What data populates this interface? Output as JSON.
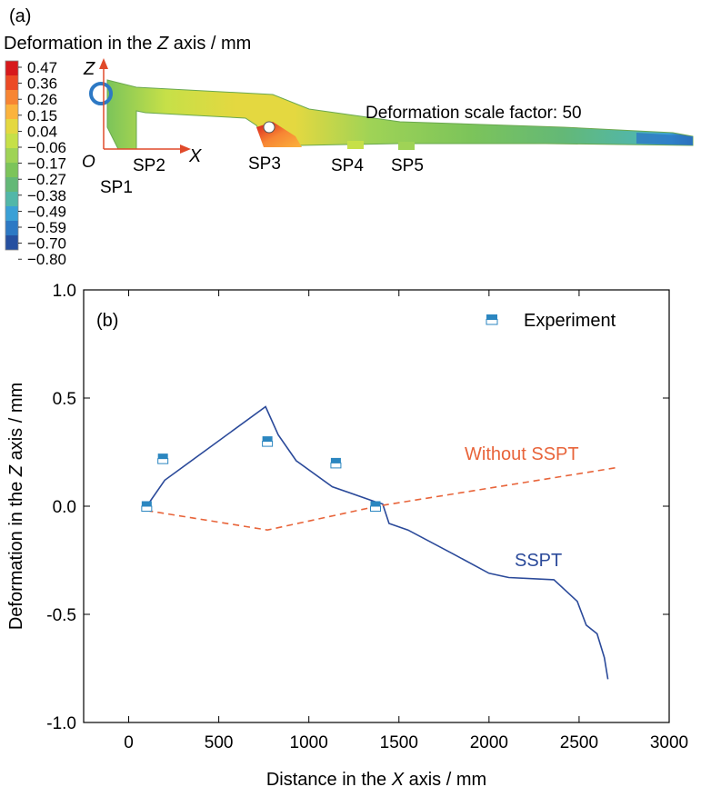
{
  "panel_a": {
    "label": "(a)",
    "colorbar_title_pre": "Deformation in the ",
    "colorbar_title_italic": "Z",
    "colorbar_title_post": " axis / mm",
    "colorbar_ticks": [
      "0.47",
      "0.36",
      "0.26",
      "0.15",
      "0.04",
      "−0.06",
      "−0.17",
      "−0.27",
      "−0.38",
      "−0.49",
      "−0.59",
      "−0.70",
      "−0.80"
    ],
    "colorbar_colors": [
      "#d7191c",
      "#ec4a25",
      "#f78533",
      "#fbb33d",
      "#e4d840",
      "#c6e048",
      "#9fd356",
      "#7cc45a",
      "#63b877",
      "#52b7a8",
      "#3aa0d6",
      "#2d79c4",
      "#2650a0"
    ],
    "axis_z": "Z",
    "axis_x": "X",
    "origin": "O",
    "scale_text": "Deformation scale factor: 50",
    "support_labels": [
      "SP1",
      "SP2",
      "SP3",
      "SP4",
      "SP5"
    ]
  },
  "chart_data": {
    "type": "line",
    "panel_label": "(b)",
    "xlabel_pre": "Distance in the ",
    "xlabel_italic": "X",
    "xlabel_post": " axis / mm",
    "ylabel_pre": "Deformation in the ",
    "ylabel_italic": "Z",
    "ylabel_post": " axis / mm",
    "xlim": [
      -250,
      3000
    ],
    "ylim": [
      -1.0,
      1.0
    ],
    "xticks": [
      0,
      500,
      1000,
      1500,
      2000,
      2500,
      3000
    ],
    "yticks": [
      1.0,
      0.5,
      0.0,
      -0.5,
      -1.0
    ],
    "xtick_labels": [
      "0",
      "500",
      "1000",
      "1500",
      "2000",
      "2500",
      "3000"
    ],
    "ytick_labels": [
      "1.0",
      "0.5",
      "0.0",
      "-0.5",
      "-1.0"
    ],
    "legend_label": "Experiment",
    "series": [
      {
        "name": "SSPT",
        "color": "#2b4a9a",
        "style": "solid",
        "x": [
          100,
          200,
          760,
          830,
          930,
          1130,
          1370,
          1410,
          1445,
          1550,
          1800,
          2000,
          2110,
          2360,
          2490,
          2540,
          2600,
          2640,
          2660
        ],
        "y": [
          0.0,
          0.12,
          0.46,
          0.33,
          0.21,
          0.09,
          0.02,
          0.01,
          -0.08,
          -0.11,
          -0.22,
          -0.31,
          -0.33,
          -0.34,
          -0.44,
          -0.55,
          -0.59,
          -0.7,
          -0.8
        ]
      },
      {
        "name": "Without SSPT",
        "color": "#e8643a",
        "style": "dashed",
        "x": [
          100,
          770,
          1380,
          2720
        ],
        "y": [
          -0.02,
          -0.11,
          0.0,
          0.18
        ]
      }
    ],
    "experiment": {
      "color": "#2b86c0",
      "x": [
        100,
        190,
        770,
        1150,
        1370
      ],
      "y": [
        0.0,
        0.22,
        0.3,
        0.2,
        0.0
      ]
    }
  }
}
